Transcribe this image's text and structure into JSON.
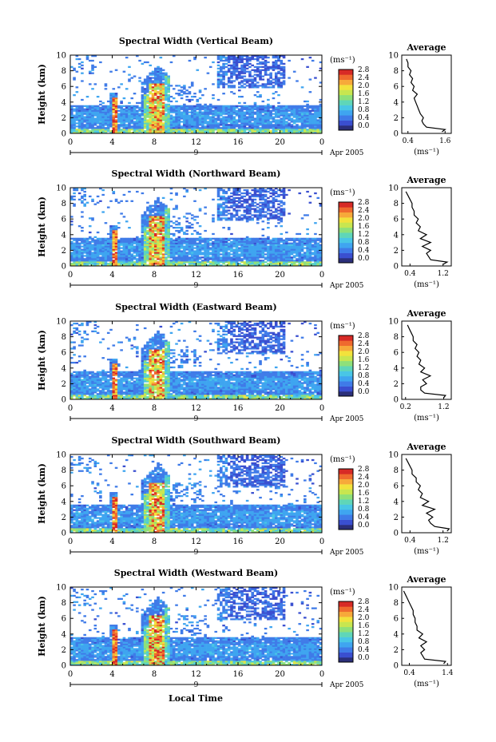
{
  "figure": {
    "shared_xlabel": "Local Time",
    "date_label": "Apr 2005",
    "day_label": "9",
    "colorbar_unit": "(ms⁻¹)",
    "colorbar_ticks": [
      "0.0",
      "0.4",
      "0.8",
      "1.2",
      "1.6",
      "2.0",
      "2.4",
      "2.8"
    ],
    "avg_title": "Average",
    "avg_xlabel": "(ms⁻¹)",
    "ylabel": "Height (km)",
    "colormap": [
      "#2b2f7a",
      "#3a4fd0",
      "#3f7be8",
      "#3fa5f0",
      "#49c6e6",
      "#5fd6b8",
      "#8ee07a",
      "#c8e650",
      "#f2e23c",
      "#f7a93a",
      "#ef6a2e",
      "#d72a26"
    ]
  },
  "chart_data": [
    {
      "type": "heatmap",
      "title": "Spectral Width (Vertical Beam)",
      "xlabel": "Local Time",
      "ylabel": "Height (km)",
      "x_ticks": [
        "0",
        "4",
        "8",
        "12",
        "16",
        "20",
        "0"
      ],
      "y_ticks": [
        "0",
        "2",
        "4",
        "6",
        "8",
        "10"
      ],
      "xlim": [
        0,
        24
      ],
      "ylim": [
        0,
        10
      ],
      "clim": [
        0,
        2.8
      ],
      "average_profile": {
        "xlabel": "(ms⁻¹)",
        "x_ticks": [
          "0.4",
          "1.6"
        ],
        "xlim": [
          0.2,
          1.8
        ],
        "height": [
          0.2,
          0.5,
          0.8,
          1.2,
          1.6,
          2,
          2.5,
          3,
          3.5,
          4,
          4.5,
          5,
          5.5,
          6,
          6.5,
          7,
          7.5,
          8,
          8.5,
          9,
          9.5
        ],
        "value": [
          1.5,
          1.6,
          1.0,
          0.9,
          0.85,
          0.9,
          0.8,
          0.75,
          0.7,
          0.65,
          0.6,
          0.7,
          0.55,
          0.6,
          0.5,
          0.55,
          0.45,
          0.5,
          0.4,
          0.4,
          0.35
        ]
      }
    },
    {
      "type": "heatmap",
      "title": "Spectral Width (Northward Beam)",
      "xlabel": "Local Time",
      "ylabel": "Height (km)",
      "x_ticks": [
        "0",
        "4",
        "8",
        "12",
        "16",
        "20",
        "0"
      ],
      "y_ticks": [
        "0",
        "2",
        "4",
        "6",
        "8",
        "10"
      ],
      "xlim": [
        0,
        24
      ],
      "ylim": [
        0,
        10
      ],
      "clim": [
        0,
        2.8
      ],
      "average_profile": {
        "xlabel": "(ms⁻¹)",
        "x_ticks": [
          "0.4",
          "1.2"
        ],
        "xlim": [
          0.2,
          1.4
        ],
        "height": [
          0.2,
          0.5,
          0.8,
          1.2,
          1.6,
          2,
          2.5,
          3,
          3.5,
          4,
          4.5,
          5,
          5.5,
          6,
          6.5,
          7,
          7.5,
          8,
          8.5,
          9,
          9.5
        ],
        "value": [
          1.2,
          1.3,
          0.9,
          0.85,
          0.8,
          0.9,
          0.7,
          0.9,
          0.65,
          0.8,
          0.6,
          0.65,
          0.55,
          0.6,
          0.5,
          0.5,
          0.45,
          0.45,
          0.4,
          0.35,
          0.3
        ]
      }
    },
    {
      "type": "heatmap",
      "title": "Spectral Width (Eastward Beam)",
      "xlabel": "Local Time",
      "ylabel": "Height (km)",
      "x_ticks": [
        "0",
        "4",
        "8",
        "12",
        "16",
        "20",
        "0"
      ],
      "y_ticks": [
        "0",
        "2",
        "4",
        "6",
        "8",
        "10"
      ],
      "xlim": [
        0,
        24
      ],
      "ylim": [
        0,
        10
      ],
      "clim": [
        0,
        2.8
      ],
      "average_profile": {
        "xlabel": "(ms⁻¹)",
        "x_ticks": [
          "0.2",
          "1.2"
        ],
        "xlim": [
          0.1,
          1.4
        ],
        "height": [
          0.2,
          0.5,
          0.8,
          1.2,
          1.6,
          2,
          2.5,
          3,
          3.5,
          4,
          4.5,
          5,
          5.5,
          6,
          6.5,
          7,
          7.5,
          8,
          8.5,
          9,
          9.5
        ],
        "value": [
          1.2,
          1.25,
          0.7,
          0.6,
          0.6,
          0.75,
          0.65,
          0.85,
          0.6,
          0.7,
          0.55,
          0.6,
          0.5,
          0.55,
          0.45,
          0.5,
          0.4,
          0.4,
          0.35,
          0.3,
          0.25
        ]
      }
    },
    {
      "type": "heatmap",
      "title": "Spectral Width (Southward Beam)",
      "xlabel": "Local Time",
      "ylabel": "Height (km)",
      "x_ticks": [
        "0",
        "4",
        "8",
        "12",
        "16",
        "20",
        "0"
      ],
      "y_ticks": [
        "0",
        "2",
        "4",
        "6",
        "8",
        "10"
      ],
      "xlim": [
        0,
        24
      ],
      "ylim": [
        0,
        10
      ],
      "clim": [
        0,
        2.8
      ],
      "average_profile": {
        "xlabel": "(ms⁻¹)",
        "x_ticks": [
          "0.4",
          "1.2"
        ],
        "xlim": [
          0.2,
          1.4
        ],
        "height": [
          0.2,
          0.5,
          0.8,
          1.2,
          1.6,
          2,
          2.5,
          3,
          3.5,
          4,
          4.5,
          5,
          5.5,
          6,
          6.5,
          7,
          7.5,
          8,
          8.5,
          9,
          9.5
        ],
        "value": [
          1.3,
          1.35,
          1.0,
          0.9,
          0.85,
          0.95,
          0.8,
          1.0,
          0.7,
          0.85,
          0.65,
          0.7,
          0.6,
          0.65,
          0.55,
          0.55,
          0.45,
          0.45,
          0.4,
          0.35,
          0.3
        ]
      }
    },
    {
      "type": "heatmap",
      "title": "Spectral Width (Westward Beam)",
      "xlabel": "Local Time",
      "ylabel": "Height (km)",
      "x_ticks": [
        "0",
        "4",
        "8",
        "12",
        "16",
        "20",
        "0"
      ],
      "y_ticks": [
        "0",
        "2",
        "4",
        "6",
        "8",
        "10"
      ],
      "xlim": [
        0,
        24
      ],
      "ylim": [
        0,
        10
      ],
      "clim": [
        0,
        2.8
      ],
      "average_profile": {
        "xlabel": "(ms⁻¹)",
        "x_ticks": [
          "0.4",
          "1.4"
        ],
        "xlim": [
          0.2,
          1.5
        ],
        "height": [
          0.2,
          0.5,
          0.8,
          1.2,
          1.6,
          2,
          2.5,
          3,
          3.5,
          4,
          4.5,
          5,
          5.5,
          6,
          6.5,
          7,
          7.5,
          8,
          8.5,
          9,
          9.5
        ],
        "value": [
          1.3,
          1.35,
          0.8,
          0.75,
          0.7,
          0.8,
          0.7,
          0.85,
          0.65,
          0.75,
          0.6,
          0.6,
          0.55,
          0.55,
          0.5,
          0.5,
          0.45,
          0.4,
          0.35,
          0.3,
          0.25
        ]
      }
    }
  ]
}
